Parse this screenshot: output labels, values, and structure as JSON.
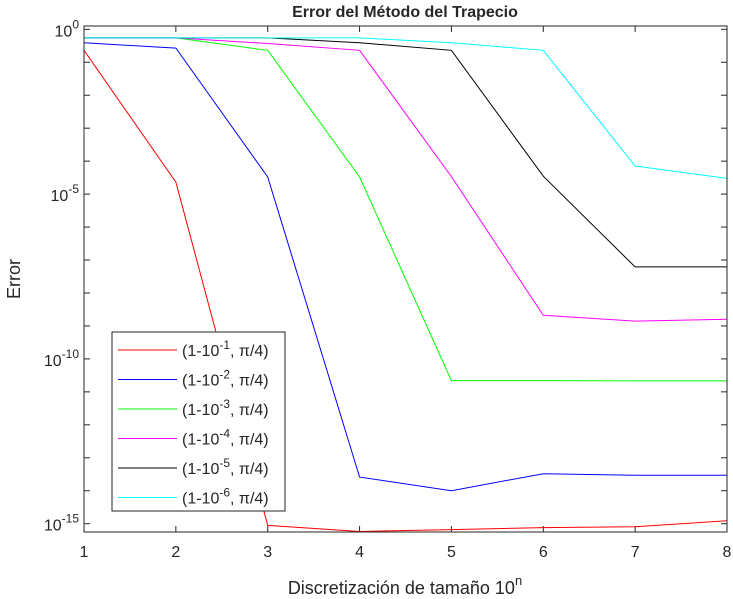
{
  "chart_data": {
    "type": "line",
    "title": "Error del Método del Trapecio",
    "xlabel": "Discretización de tamaño 10",
    "xlabel_sup": "n",
    "ylabel": "Error",
    "xlim": [
      1,
      8
    ],
    "ylim": [
      5.6e-16,
      1.26
    ],
    "yscale": "log",
    "grid": false,
    "legend_position": "bottom-left",
    "x": [
      1,
      2,
      3,
      4,
      5,
      6,
      7,
      8
    ],
    "x_ticks": [
      "1",
      "2",
      "3",
      "4",
      "5",
      "6",
      "7",
      "8"
    ],
    "y_ticks": [
      {
        "value": 1,
        "base": "10",
        "exp": "0"
      },
      {
        "value": 1e-05,
        "base": "10",
        "exp": "-5"
      },
      {
        "value": 1e-10,
        "base": "10",
        "exp": "-10"
      },
      {
        "value": 1e-15,
        "base": "10",
        "exp": "-15"
      }
    ],
    "series": [
      {
        "name": "(1-10^-1, π/4)",
        "label_pre": "(1-10",
        "label_exp": "-1",
        "label_post": ", π/4)",
        "color": "#ff0000",
        "values": [
          0.23,
          2.3e-05,
          8.9e-16,
          5.8e-16,
          6.6e-16,
          7.6e-16,
          8.1e-16,
          1.23e-15
        ]
      },
      {
        "name": "(1-10^-2, π/4)",
        "label_pre": "(1-10",
        "label_exp": "-2",
        "label_post": ", π/4)",
        "color": "#0000ff",
        "values": [
          0.39,
          0.27,
          3.3e-05,
          2.6e-14,
          1e-14,
          3.3e-14,
          2.95e-14,
          2.95e-14
        ]
      },
      {
        "name": "(1-10^-3, π/4)",
        "label_pre": "(1-10",
        "label_exp": "-3",
        "label_post": ", π/4)",
        "color": "#00ff00",
        "values": [
          0.55,
          0.55,
          0.23,
          3.3e-05,
          2.2e-11,
          2.2e-11,
          2.15e-11,
          2.15e-11
        ]
      },
      {
        "name": "(1-10^-4, π/4)",
        "label_pre": "(1-10",
        "label_exp": "-4",
        "label_post": ", π/4)",
        "color": "#ff00ff",
        "values": [
          0.55,
          0.55,
          0.37,
          0.23,
          3.4e-05,
          2.1e-09,
          1.4e-09,
          1.6e-09
        ]
      },
      {
        "name": "(1-10^-5, π/4)",
        "label_pre": "(1-10",
        "label_exp": "-5",
        "label_post": ", π/4)",
        "color": "#000000",
        "values": [
          0.55,
          0.55,
          0.55,
          0.39,
          0.23,
          3.5e-05,
          6.2e-08,
          6.2e-08
        ]
      },
      {
        "name": "(1-10^-6, π/4)",
        "label_pre": "(1-10",
        "label_exp": "-6",
        "label_post": ", π/4)",
        "color": "#00ffff",
        "values": [
          0.55,
          0.55,
          0.55,
          0.55,
          0.39,
          0.23,
          7.1e-05,
          3e-05
        ]
      }
    ]
  }
}
